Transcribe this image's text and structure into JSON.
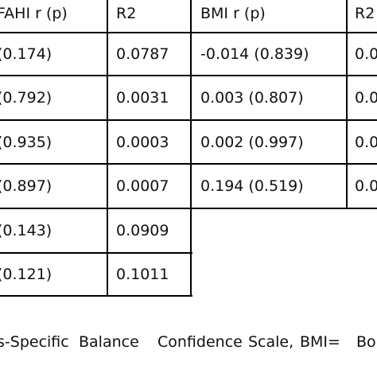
{
  "table": {
    "headers": [
      "FAHI r (p)",
      "R2",
      "BMI r (p)",
      "R2"
    ],
    "rows": [
      [
        "(0.174)",
        "0.0787",
        "-0.014 (0.839)",
        "0.0"
      ],
      [
        "(0.792)",
        "0.0031",
        "0.003 (0.807)",
        "0.0"
      ],
      [
        "(0.935)",
        "0.0003",
        "0.002 (0.997)",
        "0.0"
      ],
      [
        "(0.897)",
        "0.0007",
        "0.194 (0.519)",
        "0.0"
      ],
      [
        "(0.143)",
        "0.0909"
      ],
      [
        "(0.121)",
        "0.1011"
      ]
    ]
  },
  "caption": {
    "words": [
      "s-Specific",
      "Balance",
      "Confidence",
      "Scale,",
      "BMI=",
      "Bo"
    ]
  }
}
